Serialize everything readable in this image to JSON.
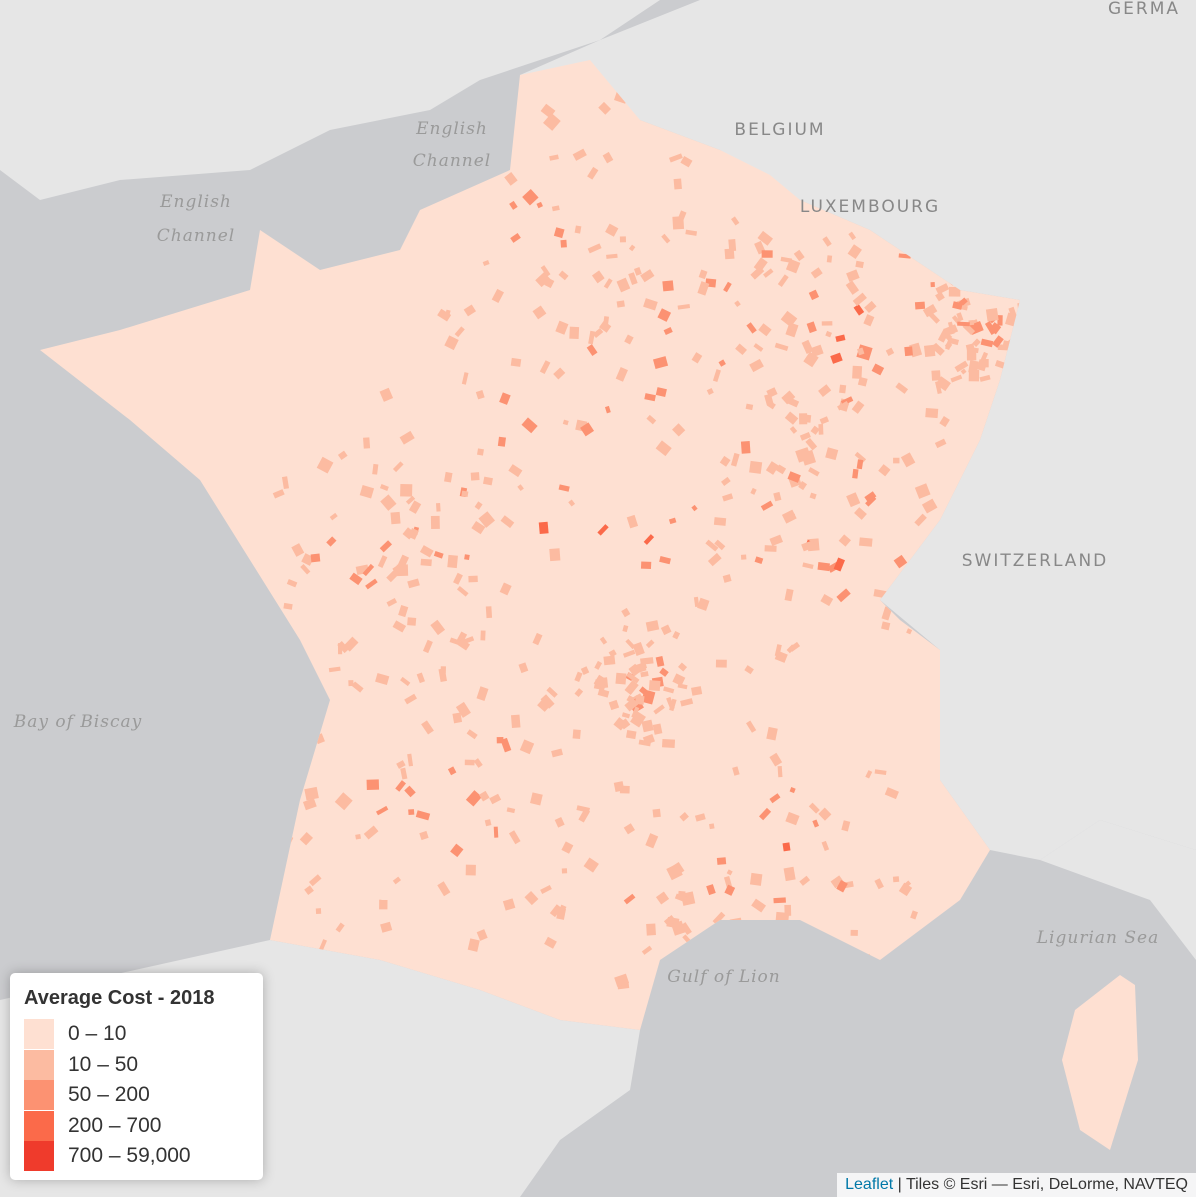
{
  "map_labels": {
    "germany": "GERMA",
    "belgium": "BELGIUM",
    "luxembourg": "LUXEMBOURG",
    "switzerland": "SWITZERLAND",
    "english_channel_1": [
      "English",
      "Channel"
    ],
    "english_channel_2": [
      "English",
      "Channel"
    ],
    "bay_of_biscay": "Bay of Biscay",
    "gulf_of_lion": "Gulf of Lion",
    "ligurian_sea": "Ligurian Sea"
  },
  "legend": {
    "title": "Average Cost - 2018",
    "entries": [
      {
        "label": "0 – 10",
        "color": "#fee0d2"
      },
      {
        "label": "10 – 50",
        "color": "#fcbba1"
      },
      {
        "label": "50 – 200",
        "color": "#fc9272"
      },
      {
        "label": "200 – 700",
        "color": "#fb6a4a"
      },
      {
        "label": "700 – 59,000",
        "color": "#ef3b2c"
      }
    ]
  },
  "attribution": {
    "link": "Leaflet",
    "text": "| Tiles © Esri — Esri, DeLorme, NAVTEQ"
  }
}
